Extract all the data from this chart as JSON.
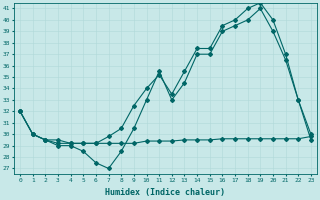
{
  "xlabel": "Humidex (Indice chaleur)",
  "xlim": [
    -0.5,
    23.5
  ],
  "ylim": [
    26.5,
    41.5
  ],
  "yticks": [
    27,
    28,
    29,
    30,
    31,
    32,
    33,
    34,
    35,
    36,
    37,
    38,
    39,
    40,
    41
  ],
  "xticks": [
    0,
    1,
    2,
    3,
    4,
    5,
    6,
    7,
    8,
    9,
    10,
    11,
    12,
    13,
    14,
    15,
    16,
    17,
    18,
    19,
    20,
    21,
    22,
    23
  ],
  "bg_color": "#c8e8e8",
  "line_color": "#006666",
  "line1_y": [
    32,
    30,
    29.5,
    29,
    29,
    28.5,
    27.5,
    27,
    28.5,
    30.5,
    33,
    35.5,
    33,
    34.5,
    37,
    37,
    39,
    39.5,
    40,
    41,
    39,
    36.5,
    33,
    29.5
  ],
  "line2_y": [
    32,
    30,
    29.5,
    29.2,
    29.2,
    29.2,
    29.2,
    29.2,
    29.2,
    29.2,
    29.4,
    29.4,
    29.4,
    29.5,
    29.5,
    29.5,
    29.6,
    29.6,
    29.6,
    29.6,
    29.6,
    29.6,
    29.6,
    29.8
  ],
  "line3_y": [
    32,
    30,
    29.5,
    29.5,
    29.2,
    29.2,
    29.2,
    29.8,
    30.5,
    32.5,
    34,
    35.2,
    33.5,
    35.5,
    37.5,
    37.5,
    39.5,
    40,
    41,
    41.5,
    40,
    37,
    33,
    30
  ]
}
